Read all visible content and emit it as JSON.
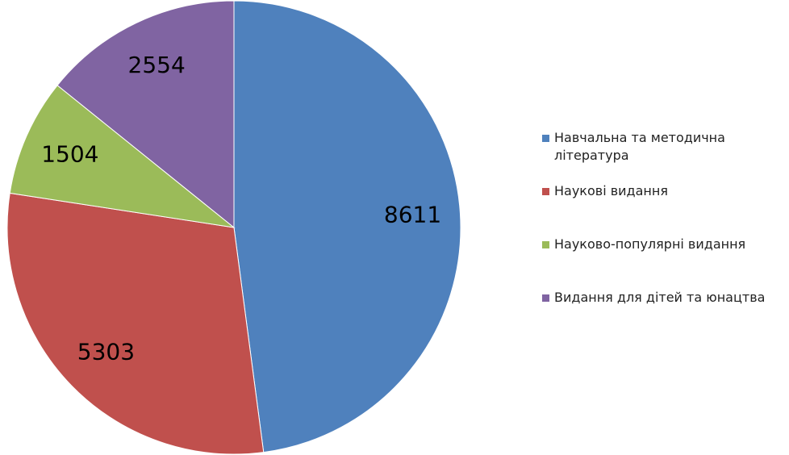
{
  "chart_data": {
    "type": "pie",
    "categories": [
      "Навчальна та методична\nлітература",
      "Наукові видання",
      "Науково-популярні видання",
      "Видання для дітей та юнацтва"
    ],
    "values": [
      8611,
      5303,
      1504,
      2554
    ],
    "colors": [
      "#4f81bd",
      "#c0504d",
      "#9bbb59",
      "#8064a2"
    ],
    "legend": "right"
  }
}
